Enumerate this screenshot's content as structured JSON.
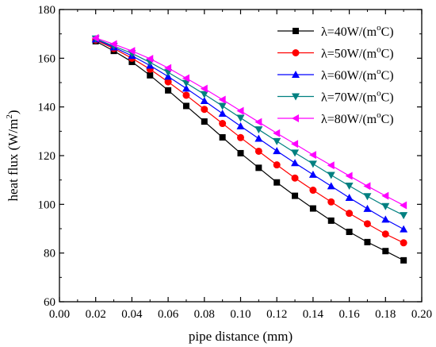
{
  "chart_data": {
    "type": "line",
    "xlabel": "pipe distance  (mm)",
    "ylabel_main": "heat flux (W/m",
    "ylabel_sup": "2",
    "ylabel_tail": ")",
    "xlim": [
      0.0,
      0.2
    ],
    "ylim": [
      60,
      180
    ],
    "xticks": [
      0.0,
      0.02,
      0.04,
      0.06,
      0.08,
      0.1,
      0.12,
      0.14,
      0.16,
      0.18,
      0.2
    ],
    "xtick_labels": [
      "0.00",
      "0.02",
      "0.04",
      "0.06",
      "0.08",
      "0.10",
      "0.12",
      "0.14",
      "0.16",
      "0.18",
      "0.20"
    ],
    "yticks": [
      60,
      80,
      100,
      120,
      140,
      160,
      180
    ],
    "ytick_labels": [
      "60",
      "80",
      "100",
      "120",
      "140",
      "160",
      "180"
    ],
    "grid": false,
    "legend_position": "top-right",
    "x": [
      0.02,
      0.03,
      0.04,
      0.05,
      0.06,
      0.07,
      0.08,
      0.09,
      0.1,
      0.11,
      0.12,
      0.13,
      0.14,
      0.15,
      0.16,
      0.17,
      0.18,
      0.19
    ],
    "series": [
      {
        "name_prefix": "λ=40W/(m",
        "name_sup": "o",
        "name_suffix": "C)",
        "color": "#000000",
        "marker": "square",
        "values": [
          167.0,
          163.0,
          158.5,
          153.0,
          146.8,
          140.4,
          134.0,
          127.5,
          121.0,
          115.0,
          109.0,
          103.5,
          98.3,
          93.3,
          88.7,
          84.5,
          80.8,
          77.0
        ]
      },
      {
        "name_prefix": "λ=50W/(m",
        "name_sup": "o",
        "name_suffix": "C)",
        "color": "#ff0000",
        "marker": "circle",
        "values": [
          167.5,
          164.0,
          160.0,
          155.5,
          150.3,
          144.8,
          139.0,
          133.2,
          127.4,
          121.8,
          116.2,
          110.8,
          105.8,
          101.0,
          96.3,
          92.0,
          87.8,
          84.2
        ]
      },
      {
        "name_prefix": "λ=60W/(m",
        "name_sup": "o",
        "name_suffix": "C)",
        "color": "#0000ff",
        "marker": "triangle-up",
        "values": [
          167.8,
          164.5,
          161.0,
          157.0,
          152.5,
          147.6,
          142.5,
          137.3,
          132.1,
          127.0,
          121.9,
          117.0,
          112.2,
          107.5,
          102.7,
          98.2,
          93.8,
          89.8
        ]
      },
      {
        "name_prefix": "λ=70W/(m",
        "name_sup": "o",
        "name_suffix": "C)",
        "color": "#008080",
        "marker": "triangle-down",
        "values": [
          168.0,
          165.0,
          162.0,
          158.3,
          154.2,
          149.8,
          145.2,
          140.4,
          135.5,
          130.7,
          125.9,
          121.2,
          116.6,
          112.0,
          107.6,
          103.3,
          99.2,
          95.5
        ]
      },
      {
        "name_prefix": "λ=80W/(m",
        "name_sup": "o",
        "name_suffix": "C)",
        "color": "#ff00ff",
        "marker": "triangle-left",
        "values": [
          168.3,
          165.8,
          163.0,
          159.8,
          156.0,
          151.8,
          147.5,
          143.0,
          138.4,
          133.8,
          129.2,
          124.8,
          120.3,
          116.0,
          111.7,
          107.5,
          103.5,
          99.6
        ]
      }
    ]
  }
}
